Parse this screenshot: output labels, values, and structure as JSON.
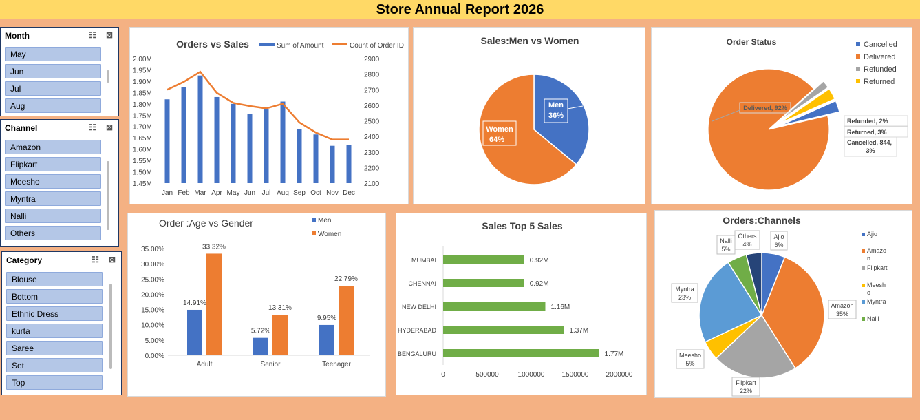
{
  "header": {
    "title": "Store Annual Report 2026"
  },
  "slicers": {
    "month": {
      "title": "Month",
      "items": [
        "May",
        "Jun",
        "Jul",
        "Aug"
      ]
    },
    "channel": {
      "title": "Channel",
      "items": [
        "Amazon",
        "Flipkart",
        "Meesho",
        "Myntra",
        "Nalli",
        "Others"
      ]
    },
    "category": {
      "title": "Category",
      "items": [
        "Blouse",
        "Bottom",
        "Ethnic Dress",
        "kurta",
        "Saree",
        "Set",
        "Top"
      ]
    }
  },
  "chart_data": [
    {
      "id": "orders_vs_sales",
      "type": "bar+line",
      "title": "Orders vs Sales",
      "categories": [
        "Jan",
        "Feb",
        "Mar",
        "Apr",
        "May",
        "Jun",
        "Jul",
        "Aug",
        "Sep",
        "Oct",
        "Nov",
        "Dec"
      ],
      "series": [
        {
          "name": "Sum of Amount",
          "type": "bar",
          "axis": "left",
          "color": "#4472c4",
          "values": [
            1.82,
            1.875,
            1.925,
            1.83,
            1.8,
            1.755,
            1.775,
            1.81,
            1.69,
            1.665,
            1.615,
            1.62
          ]
        },
        {
          "name": "Count of Order ID",
          "type": "line",
          "axis": "right",
          "color": "#ed7d31",
          "values": [
            2700,
            2750,
            2815,
            2680,
            2615,
            2595,
            2580,
            2610,
            2490,
            2425,
            2380,
            2380
          ]
        }
      ],
      "y_left": {
        "min": 1.45,
        "max": 2.0,
        "ticks": [
          "1.45M",
          "1.50M",
          "1.55M",
          "1.60M",
          "1.65M",
          "1.70M",
          "1.75M",
          "1.80M",
          "1.85M",
          "1.90M",
          "1.95M",
          "2.00M"
        ]
      },
      "y_right": {
        "min": 2100,
        "max": 2900,
        "ticks": [
          "2100",
          "2200",
          "2300",
          "2400",
          "2500",
          "2600",
          "2700",
          "2800",
          "2900"
        ]
      }
    },
    {
      "id": "men_vs_women",
      "type": "pie",
      "title": "Sales:Men vs Women",
      "slices": [
        {
          "name": "Men",
          "value": 36,
          "label": "36%",
          "color": "#4472c4"
        },
        {
          "name": "Women",
          "value": 64,
          "label": "64%",
          "color": "#ed7d31"
        }
      ]
    },
    {
      "id": "order_status",
      "type": "pie",
      "title": "Order Status",
      "legend": "right",
      "slices": [
        {
          "name": "Cancelled",
          "value": 3,
          "label": "Cancelled, 844, 3%",
          "color": "#4472c4"
        },
        {
          "name": "Delivered",
          "value": 92,
          "label": "Delivered, 92%",
          "color": "#ed7d31"
        },
        {
          "name": "Refunded",
          "value": 2,
          "label": "Refunded, 2%",
          "color": "#a5a5a5"
        },
        {
          "name": "Returned",
          "value": 3,
          "label": "Returned, 3%",
          "color": "#ffc000"
        }
      ]
    },
    {
      "id": "age_vs_gender",
      "type": "bar",
      "title": "Order :Age vs Gender",
      "categories": [
        "Adult",
        "Senior",
        "Teenager"
      ],
      "series": [
        {
          "name": "Men",
          "color": "#4472c4",
          "values": [
            14.91,
            5.72,
            9.95
          ],
          "labels": [
            "14.91%",
            "5.72%",
            "9.95%"
          ]
        },
        {
          "name": "Women",
          "color": "#ed7d31",
          "values": [
            33.32,
            13.31,
            22.79
          ],
          "labels": [
            "33.32%",
            "13.31%",
            "22.79%"
          ]
        }
      ],
      "ylim": [
        0,
        35
      ],
      "y_ticks": [
        "0.00%",
        "5.00%",
        "10.00%",
        "15.00%",
        "20.00%",
        "25.00%",
        "30.00%",
        "35.00%"
      ]
    },
    {
      "id": "top5_sales",
      "type": "bar",
      "orientation": "horizontal",
      "title": "Sales Top 5 Sales",
      "categories": [
        "MUMBAI",
        "CHENNAI",
        "NEW DELHI",
        "HYDERABAD",
        "BENGALURU"
      ],
      "values": [
        920000,
        920000,
        1160000,
        1370000,
        1770000
      ],
      "labels": [
        "0.92M",
        "0.92M",
        "1.16M",
        "1.37M",
        "1.77M"
      ],
      "color": "#70ad47",
      "xlim": [
        0,
        2000000
      ],
      "x_ticks": [
        "0",
        "500000",
        "1000000",
        "1500000",
        "2000000"
      ]
    },
    {
      "id": "orders_channels",
      "type": "pie",
      "title": "Orders:Channels",
      "legend": "right",
      "slices": [
        {
          "name": "Ajio",
          "value": 6,
          "label": "6%",
          "color": "#4472c4"
        },
        {
          "name": "Amazon",
          "value": 35,
          "label": "35%",
          "color": "#ed7d31"
        },
        {
          "name": "Flipkart",
          "value": 22,
          "label": "22%",
          "color": "#a5a5a5"
        },
        {
          "name": "Meesho",
          "value": 5,
          "label": "5%",
          "color": "#ffc000"
        },
        {
          "name": "Myntra",
          "value": 23,
          "label": "23%",
          "color": "#5b9bd5"
        },
        {
          "name": "Nalli",
          "value": 5,
          "label": "5%",
          "color": "#70ad47"
        },
        {
          "name": "Others",
          "value": 4,
          "label": "4%",
          "color": "#264478"
        }
      ],
      "legend_entries": [
        "Ajio",
        "Amazo\nn",
        "Flipkart",
        "Meesh\no",
        "Myntra",
        "Nalli"
      ]
    }
  ]
}
